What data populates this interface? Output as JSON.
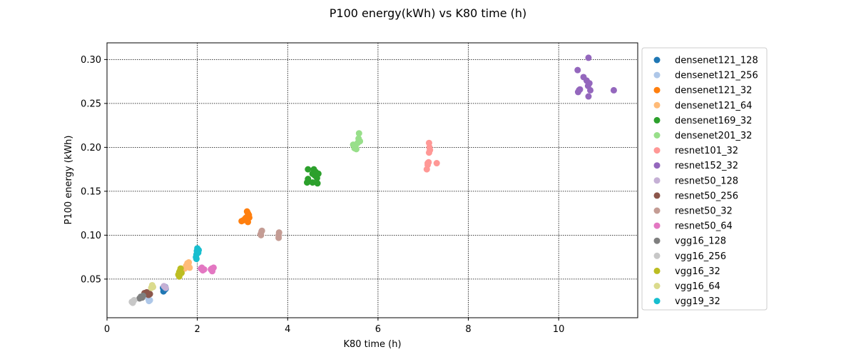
{
  "chart_data": {
    "type": "scatter",
    "title": "P100 energy(kWh) vs K80 time (h)",
    "xlabel": "K80 time (h)",
    "ylabel": "P100 energy (kWh)",
    "xlim": [
      0,
      11.75
    ],
    "ylim": [
      0.006,
      0.319
    ],
    "xticks": [
      0,
      2,
      4,
      6,
      8,
      10
    ],
    "yticks": [
      0.05,
      0.1,
      0.15,
      0.2,
      0.25,
      0.3
    ],
    "ytick_labels": [
      "0.05",
      "0.10",
      "0.15",
      "0.20",
      "0.25",
      "0.30"
    ],
    "grid": true,
    "legend_position": "outside-right",
    "series": [
      {
        "name": "densenet121_128",
        "color": "#1f77b4",
        "points": [
          [
            1.24,
            0.04
          ],
          [
            1.26,
            0.037
          ],
          [
            1.28,
            0.038
          ],
          [
            1.3,
            0.039
          ],
          [
            1.25,
            0.036
          ],
          [
            1.29,
            0.041
          ]
        ]
      },
      {
        "name": "densenet121_256",
        "color": "#aec7e8",
        "points": [
          [
            0.93,
            0.025
          ],
          [
            0.95,
            0.026
          ],
          [
            0.92,
            0.027
          ]
        ]
      },
      {
        "name": "densenet121_32",
        "color": "#ff7f0e",
        "points": [
          [
            2.98,
            0.116
          ],
          [
            3.02,
            0.117
          ],
          [
            3.08,
            0.12
          ],
          [
            3.1,
            0.127
          ],
          [
            3.12,
            0.125
          ],
          [
            3.15,
            0.12
          ],
          [
            3.12,
            0.115
          ],
          [
            3.06,
            0.119
          ],
          [
            3.14,
            0.123
          ]
        ]
      },
      {
        "name": "densenet121_64",
        "color": "#ffbb78",
        "points": [
          [
            1.72,
            0.062
          ],
          [
            1.75,
            0.065
          ],
          [
            1.78,
            0.068
          ],
          [
            1.8,
            0.066
          ],
          [
            1.83,
            0.063
          ],
          [
            1.76,
            0.064
          ],
          [
            1.81,
            0.069
          ]
        ]
      },
      {
        "name": "densenet169_32",
        "color": "#2ca02c",
        "points": [
          [
            4.43,
            0.16
          ],
          [
            4.45,
            0.164
          ],
          [
            4.45,
            0.175
          ],
          [
            4.55,
            0.17
          ],
          [
            4.58,
            0.175
          ],
          [
            4.6,
            0.168
          ],
          [
            4.62,
            0.172
          ],
          [
            4.65,
            0.165
          ],
          [
            4.66,
            0.159
          ],
          [
            4.55,
            0.16
          ],
          [
            4.68,
            0.17
          ]
        ]
      },
      {
        "name": "densenet201_32",
        "color": "#98df8a",
        "points": [
          [
            5.45,
            0.203
          ],
          [
            5.48,
            0.199
          ],
          [
            5.5,
            0.201
          ],
          [
            5.55,
            0.205
          ],
          [
            5.57,
            0.21
          ],
          [
            5.58,
            0.216
          ],
          [
            5.6,
            0.207
          ],
          [
            5.52,
            0.198
          ]
        ]
      },
      {
        "name": "resnet101_32",
        "color": "#ff9896",
        "points": [
          [
            7.08,
            0.175
          ],
          [
            7.1,
            0.182
          ],
          [
            7.12,
            0.183
          ],
          [
            7.13,
            0.194
          ],
          [
            7.14,
            0.2
          ],
          [
            7.13,
            0.205
          ],
          [
            7.15,
            0.197
          ],
          [
            7.3,
            0.182
          ],
          [
            7.1,
            0.18
          ]
        ]
      },
      {
        "name": "resnet152_32",
        "color": "#9467bd",
        "points": [
          [
            10.42,
            0.288
          ],
          [
            10.43,
            0.263
          ],
          [
            10.47,
            0.266
          ],
          [
            10.55,
            0.28
          ],
          [
            10.62,
            0.276
          ],
          [
            10.65,
            0.27
          ],
          [
            10.66,
            0.258
          ],
          [
            10.66,
            0.302
          ],
          [
            10.68,
            0.273
          ],
          [
            10.7,
            0.265
          ],
          [
            11.22,
            0.265
          ],
          [
            10.45,
            0.265
          ]
        ]
      },
      {
        "name": "resnet50_128",
        "color": "#c5b0d5",
        "points": [
          [
            1.28,
            0.041
          ],
          [
            1.3,
            0.04
          ],
          [
            1.26,
            0.042
          ]
        ]
      },
      {
        "name": "resnet50_256",
        "color": "#8c564b",
        "points": [
          [
            0.85,
            0.033
          ],
          [
            0.88,
            0.035
          ],
          [
            0.92,
            0.032
          ],
          [
            0.95,
            0.033
          ],
          [
            0.83,
            0.034
          ]
        ]
      },
      {
        "name": "resnet50_32",
        "color": "#c49c94",
        "points": [
          [
            3.4,
            0.101
          ],
          [
            3.42,
            0.104
          ],
          [
            3.43,
            0.105
          ],
          [
            3.8,
            0.097
          ],
          [
            3.8,
            0.1
          ],
          [
            3.81,
            0.103
          ],
          [
            3.41,
            0.1
          ]
        ]
      },
      {
        "name": "resnet50_64",
        "color": "#e377c2",
        "points": [
          [
            2.08,
            0.062
          ],
          [
            2.1,
            0.063
          ],
          [
            2.12,
            0.06
          ],
          [
            2.15,
            0.061
          ],
          [
            2.3,
            0.061
          ],
          [
            2.33,
            0.059
          ],
          [
            2.36,
            0.063
          ],
          [
            2.32,
            0.062
          ]
        ]
      },
      {
        "name": "vgg16_128",
        "color": "#7f7f7f",
        "points": [
          [
            0.72,
            0.028
          ],
          [
            0.75,
            0.03
          ],
          [
            0.78,
            0.029
          ],
          [
            0.8,
            0.031
          ]
        ]
      },
      {
        "name": "vgg16_256",
        "color": "#c7c7c7",
        "points": [
          [
            0.55,
            0.024
          ],
          [
            0.58,
            0.025
          ],
          [
            0.6,
            0.026
          ],
          [
            0.57,
            0.023
          ]
        ]
      },
      {
        "name": "vgg16_32",
        "color": "#bcbd22",
        "points": [
          [
            1.58,
            0.055
          ],
          [
            1.6,
            0.058
          ],
          [
            1.62,
            0.06
          ],
          [
            1.63,
            0.062
          ],
          [
            1.6,
            0.053
          ],
          [
            1.65,
            0.057
          ]
        ]
      },
      {
        "name": "vgg16_64",
        "color": "#dbdb8d",
        "points": [
          [
            0.98,
            0.04
          ],
          [
            1.0,
            0.043
          ],
          [
            1.02,
            0.041
          ]
        ]
      },
      {
        "name": "vgg19_32",
        "color": "#17becf",
        "points": [
          [
            1.97,
            0.075
          ],
          [
            1.98,
            0.078
          ],
          [
            1.99,
            0.082
          ],
          [
            2.0,
            0.085
          ],
          [
            2.02,
            0.08
          ],
          [
            2.03,
            0.083
          ],
          [
            1.98,
            0.073
          ]
        ]
      }
    ]
  }
}
